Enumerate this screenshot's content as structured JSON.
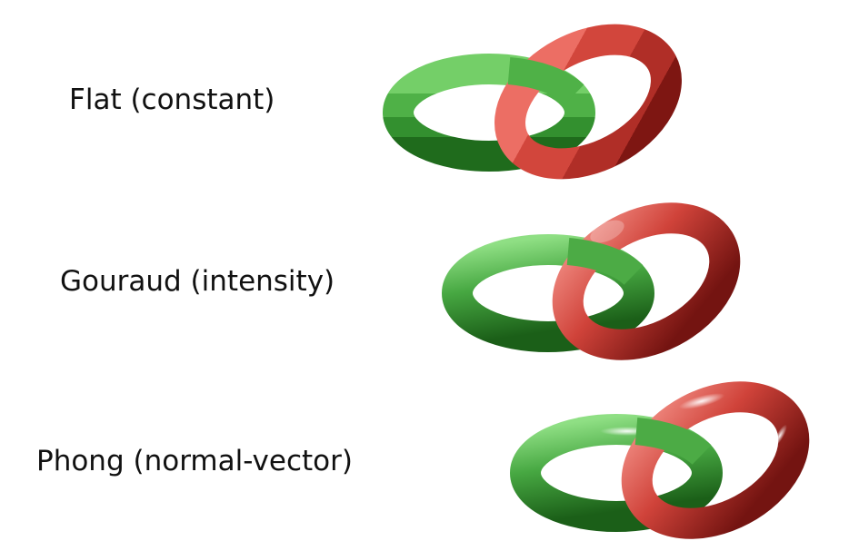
{
  "rows": [
    {
      "label": "Flat (constant)",
      "shading": "flat"
    },
    {
      "label": "Gouraud (intensity)",
      "shading": "gouraud"
    },
    {
      "label": "Phong (normal-vector)",
      "shading": "phong"
    }
  ],
  "colors": {
    "green": "#4caf48",
    "green_dark": "#1f6b1c",
    "green_light": "#9be38f",
    "red": "#d8483f",
    "red_dark": "#7e1612",
    "red_light": "#f3a49e"
  },
  "icon_names": [
    "interlocked-green-red-torus-pair"
  ]
}
